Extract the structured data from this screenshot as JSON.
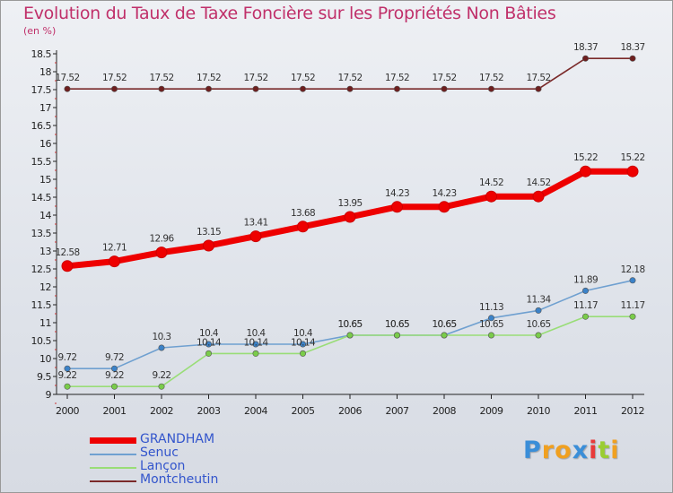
{
  "chart_data": {
    "type": "line",
    "title": "Evolution du Taux de Taxe Foncière sur les Propriétés Non Bâties",
    "ylabel": "(en %)",
    "xlabel": "",
    "ylim": [
      9,
      18.5
    ],
    "y_ticks": [
      "9",
      "9.5",
      "10",
      "10.5",
      "11",
      "11.5",
      "12",
      "12.5",
      "13",
      "13.5",
      "14",
      "14.5",
      "15",
      "15.5",
      "16",
      "16.5",
      "17",
      "17.5",
      "18",
      "18.5"
    ],
    "categories": [
      "2000",
      "2001",
      "2002",
      "2003",
      "2004",
      "2005",
      "2006",
      "2007",
      "2008",
      "2009",
      "2010",
      "2011",
      "2012"
    ],
    "series": [
      {
        "name": "Montcheutin",
        "color": "#7a2a2a",
        "marker_color": "#6e1f1f",
        "values": [
          17.52,
          17.52,
          17.52,
          17.52,
          17.52,
          17.52,
          17.52,
          17.52,
          17.52,
          17.52,
          17.52,
          18.37,
          18.37
        ],
        "labels": [
          "17.52",
          "17.52",
          "17.52",
          "17.52",
          "17.52",
          "17.52",
          "17.52",
          "17.52",
          "17.52",
          "17.52",
          "17.52",
          "18.37",
          "18.37"
        ]
      },
      {
        "name": "GRANDHAM",
        "color": "#ee0000",
        "marker_color": "#ee0000",
        "values": [
          12.58,
          12.71,
          12.96,
          13.15,
          13.41,
          13.68,
          13.95,
          14.23,
          14.23,
          14.52,
          14.52,
          15.22,
          15.22
        ],
        "labels": [
          "12.58",
          "12.71",
          "12.96",
          "13.15",
          "13.41",
          "13.68",
          "13.95",
          "14.23",
          "14.23",
          "14.52",
          "14.52",
          "15.22",
          "15.22"
        ]
      },
      {
        "name": "Senuc",
        "color": "#6fa0d0",
        "marker_color": "#3b82c8",
        "values": [
          9.72,
          9.72,
          10.3,
          10.4,
          10.4,
          10.4,
          10.65,
          10.65,
          10.65,
          11.13,
          11.34,
          11.89,
          12.18
        ],
        "labels": [
          "9.72",
          "9.72",
          "10.3",
          "10.4",
          "10.4",
          "10.4",
          "10.65",
          "10.65",
          "10.65",
          "11.13",
          "11.34",
          "11.89",
          "12.18"
        ]
      },
      {
        "name": "Lançon",
        "color": "#99dd77",
        "marker_color": "#7acc4a",
        "values": [
          9.22,
          9.22,
          9.22,
          10.14,
          10.14,
          10.14,
          10.65,
          10.65,
          10.65,
          10.65,
          10.65,
          11.17,
          11.17
        ],
        "labels": [
          "9.22",
          "9.22",
          "9.22",
          "10.14",
          "10.14",
          "10.14",
          "10.65",
          "10.65",
          "10.65",
          "10.65",
          "10.65",
          "11.17",
          "11.17"
        ]
      }
    ],
    "legend": [
      "GRANDHAM",
      "Senuc",
      "Lançon",
      "Montcheutin"
    ],
    "legend_colors": [
      "#ee0000",
      "#6fa0d0",
      "#99dd77",
      "#7a2a2a"
    ]
  },
  "logo": {
    "text": "Proxiti",
    "letters": [
      "P",
      "r",
      "o",
      "x",
      "i",
      "t",
      "i"
    ],
    "colors": [
      "#3a8ed8",
      "#f0a020",
      "#f0a020",
      "#3a8ed8",
      "#e83a3a",
      "#9acd32",
      "#f0a020"
    ]
  }
}
